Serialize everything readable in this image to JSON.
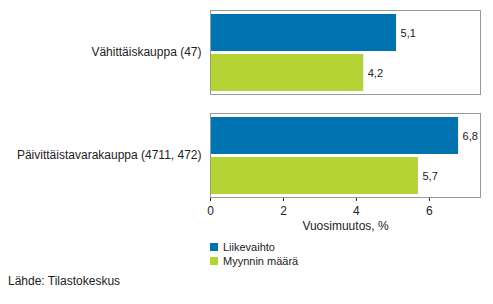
{
  "chart_data": {
    "type": "bar",
    "orientation": "horizontal",
    "categories": [
      "Vähittäiskauppa (47)",
      "Päivittäistavarakauppa (4711, 472)"
    ],
    "series": [
      {
        "name": "Liikevaihto",
        "color": "#0073b0",
        "values": [
          5.1,
          6.8
        ],
        "value_labels": [
          "5,1",
          "6,8"
        ]
      },
      {
        "name": "Myynnin määrä",
        "color": "#b5d334",
        "values": [
          4.2,
          5.7
        ],
        "value_labels": [
          "4,2",
          "5,7"
        ]
      }
    ],
    "x_label": "Vuosimuutos, %",
    "xlim": [
      0,
      7.4
    ],
    "xticks": [
      0,
      2,
      4,
      6
    ],
    "grid": false,
    "data_labels": true,
    "legend": "bottom",
    "caption": "Lähde: Tilastokeskus"
  }
}
